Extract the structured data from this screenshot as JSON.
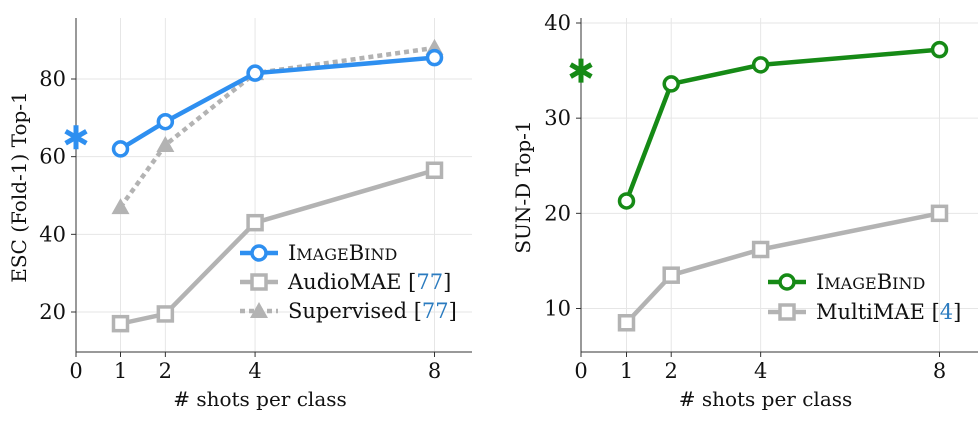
{
  "chart_data": [
    {
      "type": "line",
      "xlabel": "# shots per class",
      "ylabel": "ESC (Fold-1) Top-1",
      "xlim": [
        0,
        9
      ],
      "ylim": [
        6,
        95
      ],
      "xticks": [
        0,
        1,
        2,
        4,
        8
      ],
      "yticks": [
        20,
        40,
        60,
        80
      ],
      "grid": true,
      "legend_position": "bottom-right",
      "zero_shot": {
        "x": 0,
        "y": 65,
        "marker": "star",
        "color": "#2e8ff0"
      },
      "series": [
        {
          "name": "IMAGEBIND",
          "x": [
            1,
            2,
            4,
            8
          ],
          "values": [
            62,
            69,
            81.5,
            85.5
          ],
          "color": "#2e8ff0",
          "style": "solid",
          "marker": "circle"
        },
        {
          "name": "AudioMAE",
          "ref": "77",
          "x": [
            1,
            2,
            4,
            8
          ],
          "values": [
            17,
            19.5,
            43,
            56.5
          ],
          "color": "#b3b3b3",
          "style": "solid",
          "marker": "square"
        },
        {
          "name": "Supervised",
          "ref": "77",
          "x": [
            1,
            2,
            4,
            8
          ],
          "values": [
            47,
            63,
            81.5,
            88
          ],
          "color": "#b3b3b3",
          "style": "dotted",
          "marker": "triangle"
        }
      ]
    },
    {
      "type": "line",
      "xlabel": "# shots per class",
      "ylabel": "SUN-D Top-1",
      "xlim": [
        0,
        9
      ],
      "ylim": [
        6,
        40
      ],
      "xticks": [
        0,
        1,
        2,
        4,
        8
      ],
      "yticks": [
        10,
        20,
        30,
        40
      ],
      "grid": true,
      "legend_position": "bottom-right",
      "zero_shot": {
        "x": 0,
        "y": 35,
        "marker": "star",
        "color": "#168a16"
      },
      "series": [
        {
          "name": "IMAGEBIND",
          "x": [
            1,
            2,
            4,
            8
          ],
          "values": [
            21.3,
            33.6,
            35.6,
            37.2
          ],
          "color": "#168a16",
          "style": "solid",
          "marker": "circle"
        },
        {
          "name": "MultiMAE",
          "ref": "4",
          "x": [
            1,
            2,
            4,
            8
          ],
          "values": [
            8.5,
            13.5,
            16.2,
            20
          ],
          "color": "#b3b3b3",
          "style": "solid",
          "marker": "square"
        }
      ]
    }
  ]
}
